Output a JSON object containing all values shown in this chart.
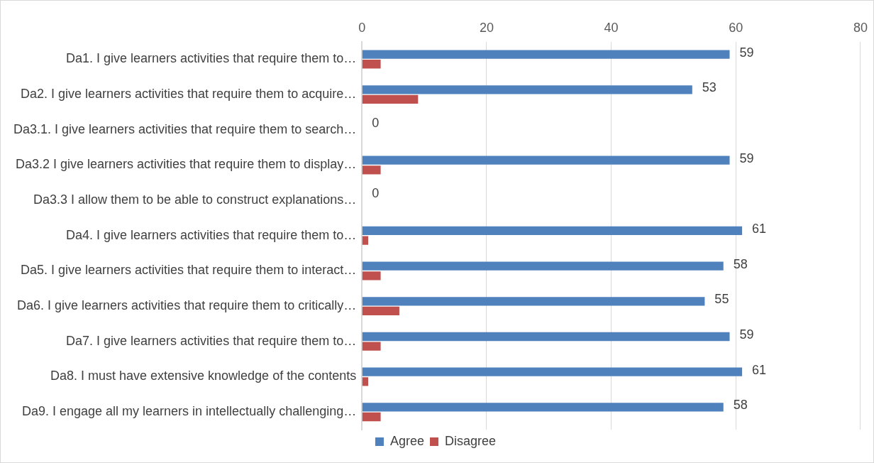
{
  "chart_data": {
    "type": "bar",
    "orientation": "horizontal",
    "categories": [
      "Da1. I give learners activities that require them to…",
      "Da2. I give learners activities that require them to acquire…",
      "Da3.1. I give learners activities that require them to search…",
      "Da3.2 I give learners activities that require them to display…",
      "Da3.3 I allow them to be able to construct explanations…",
      "Da4. I give learners activities that require them to…",
      "Da5. I give learners activities that require them to interact…",
      "Da6. I give learners activities that require them to critically…",
      "Da7. I give learners activities that require them to…",
      "Da8. I must have extensive knowledge of the contents",
      "Da9. I engage all my learners in intellectually challenging…"
    ],
    "series": [
      {
        "name": "Agree",
        "color": "#4f81bd",
        "values": [
          59,
          53,
          0,
          59,
          0,
          61,
          58,
          55,
          59,
          61,
          58
        ],
        "value_labels": [
          "59",
          "53",
          "0",
          "59",
          "0",
          "61",
          "58",
          "55",
          "59",
          "61",
          "58"
        ]
      },
      {
        "name": "Disagree",
        "color": "#c0504d",
        "values": [
          3,
          9,
          0,
          3,
          0,
          1,
          3,
          6,
          3,
          1,
          3
        ]
      }
    ],
    "xlim": [
      0,
      80
    ],
    "xticks": [
      0,
      20,
      40,
      60,
      80
    ],
    "grid": "x",
    "legend": "bottom"
  }
}
